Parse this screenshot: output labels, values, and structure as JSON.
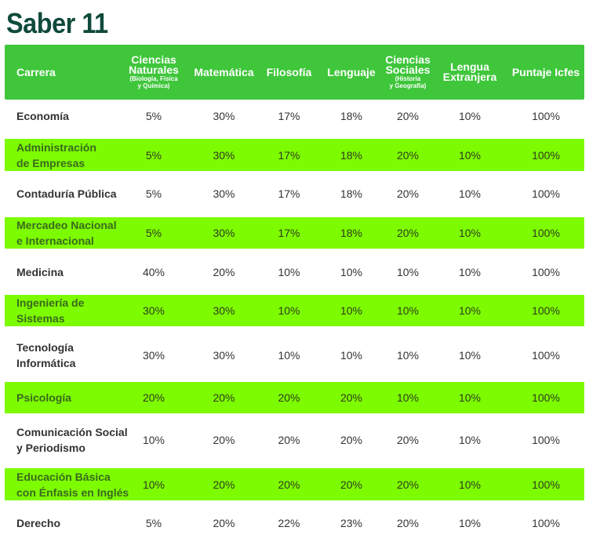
{
  "title": "Saber 11",
  "headers": {
    "carrera": "Carrera",
    "ciencias_naturales": {
      "main": "Ciencias\nNaturales",
      "sub": "(Biología, Física\ny Química)"
    },
    "matematica": "Matemática",
    "filosofia": "Filosofía",
    "lenguaje": "Lenguaje",
    "ciencias_sociales": {
      "main": "Ciencias\nSociales",
      "sub": "(Historia\ny Geografía)"
    },
    "lengua_extranjera": "Lengua\nExtranjera",
    "puntaje": "Puntaje Icfes"
  },
  "rows": [
    {
      "carrera": "Economía",
      "values": [
        "5%",
        "30%",
        "17%",
        "18%",
        "20%",
        "10%",
        "100%"
      ]
    },
    {
      "carrera": "Administración\nde Empresas",
      "values": [
        "5%",
        "30%",
        "17%",
        "18%",
        "20%",
        "10%",
        "100%"
      ]
    },
    {
      "carrera": "Contaduría Pública",
      "values": [
        "5%",
        "30%",
        "17%",
        "18%",
        "20%",
        "10%",
        "100%"
      ]
    },
    {
      "carrera": "Mercadeo Nacional\ne Internacional",
      "values": [
        "5%",
        "30%",
        "17%",
        "18%",
        "20%",
        "10%",
        "100%"
      ]
    },
    {
      "carrera": "Medicina",
      "values": [
        "40%",
        "20%",
        "10%",
        "10%",
        "10%",
        "10%",
        "100%"
      ]
    },
    {
      "carrera": "Ingeniería de\nSistemas",
      "values": [
        "30%",
        "30%",
        "10%",
        "10%",
        "10%",
        "10%",
        "100%"
      ]
    },
    {
      "carrera": "Tecnología\nInformática",
      "values": [
        "30%",
        "30%",
        "10%",
        "10%",
        "10%",
        "10%",
        "100%"
      ]
    },
    {
      "carrera": "Psicología",
      "values": [
        "20%",
        "20%",
        "20%",
        "20%",
        "10%",
        "10%",
        "100%"
      ]
    },
    {
      "carrera": "Comunicación Social\ny Periodismo",
      "values": [
        "10%",
        "20%",
        "20%",
        "20%",
        "20%",
        "10%",
        "100%"
      ]
    },
    {
      "carrera": "Educación Básica\ncon Énfasis en Inglés",
      "values": [
        "10%",
        "20%",
        "20%",
        "20%",
        "20%",
        "10%",
        "100%"
      ]
    },
    {
      "carrera": "Derecho",
      "values": [
        "5%",
        "20%",
        "22%",
        "23%",
        "20%",
        "10%",
        "100%"
      ]
    }
  ],
  "colors": {
    "header": "#3fc63b",
    "highlight": "#7dfb00",
    "title": "#0f4a3a"
  }
}
